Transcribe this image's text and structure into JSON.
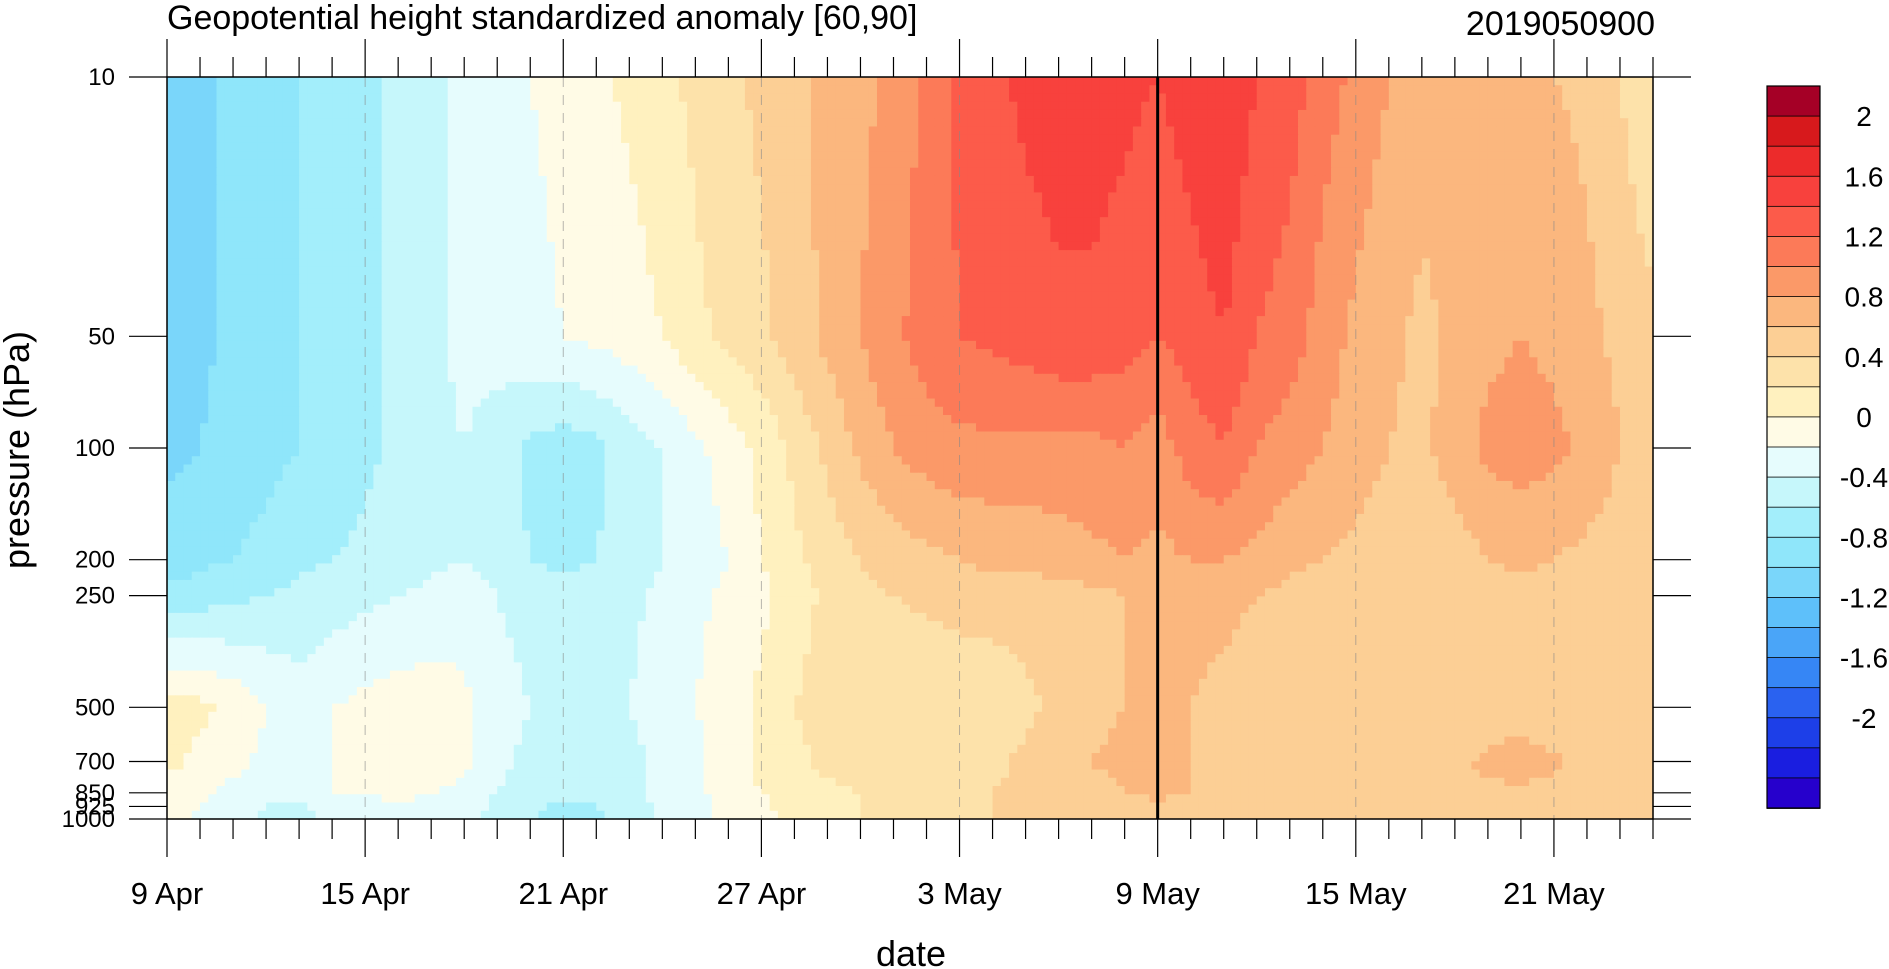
{
  "chart_data": {
    "type": "heatmap",
    "title": "Geopotential height standardized anomaly [60,90]",
    "subtitle_right": "2019050900",
    "xlabel": "date",
    "ylabel": "pressure (hPa)",
    "x_tick_labels": [
      "9 Apr",
      "15 Apr",
      "21 Apr",
      "27 Apr",
      "3 May",
      "9 May",
      "15 May",
      "21 May"
    ],
    "y_tick_labels": [
      "10",
      "50",
      "100",
      "200",
      "250",
      "500",
      "700",
      "850",
      "925",
      "1000"
    ],
    "pressure_levels": [
      10,
      50,
      100,
      200,
      250,
      500,
      700,
      850,
      925,
      1000
    ],
    "y_scale": "log",
    "y_reversed": true,
    "xlim_days": [
      0,
      45
    ],
    "current_date_marker": "9 May",
    "colorbar_labels": [
      "2",
      "1.6",
      "1.2",
      "0.8",
      "0.4",
      "0",
      "-0.4",
      "-0.8",
      "-1.2",
      "-1.6",
      "-2"
    ],
    "colorbar_levels": [
      2.2,
      2.0,
      1.8,
      1.6,
      1.4,
      1.2,
      1.0,
      0.8,
      0.6,
      0.4,
      0.2,
      0.0,
      -0.2,
      -0.4,
      -0.6,
      -0.8,
      -1.0,
      -1.2,
      -1.4,
      -1.6,
      -1.8,
      -2.0,
      -2.2
    ],
    "colorbar_colors": [
      "#a50026",
      "#d7191c",
      "#ec2b2b",
      "#f8413d",
      "#fc5b4a",
      "#fc7a58",
      "#fb9968",
      "#fbb77e",
      "#fccf95",
      "#fde2aa",
      "#fff1bf",
      "#fffbe6",
      "#e6fcfd",
      "#c6f7fb",
      "#a3eefb",
      "#8fe6fa",
      "#7ad6fa",
      "#5ec0fa",
      "#4aa5f8",
      "#3686f5",
      "#2a62f0",
      "#1d3fe8",
      "#1a1ee0",
      "#2600cc"
    ],
    "color_band_map": [
      -1.0,
      -0.8,
      -0.6,
      -0.4,
      -0.2,
      0.0,
      0.2,
      0.4,
      0.6,
      0.8,
      1.0,
      1.2,
      1.4,
      1.6,
      1.8
    ],
    "days": [
      0,
      1,
      2,
      3,
      4,
      5,
      6,
      7,
      8,
      9,
      10,
      11,
      12,
      13,
      14,
      15,
      16,
      17,
      18,
      19,
      20,
      21,
      22,
      23,
      24,
      25,
      26,
      27,
      28,
      29,
      30,
      31,
      32,
      33,
      34,
      35,
      36,
      37,
      38,
      39,
      40,
      41,
      42,
      43,
      44,
      45
    ],
    "values": [
      [
        -1.0,
        -0.9,
        -0.7,
        -0.65,
        -0.6,
        -0.55,
        -0.45,
        -0.35,
        -0.25,
        -0.15,
        -0.1,
        0.0,
        0.05,
        0.15,
        0.25,
        0.35,
        0.45,
        0.55,
        0.65,
        0.75,
        0.85,
        0.95,
        1.05,
        1.25,
        1.45,
        1.55,
        1.65,
        1.7,
        1.7,
        1.65,
        1.6,
        1.7,
        1.8,
        1.6,
        1.5,
        1.3,
        1.15,
        1.0,
        0.9,
        0.85,
        0.85,
        0.85,
        0.8,
        0.75,
        0.6,
        0.4
      ],
      [
        -0.9,
        -0.85,
        -0.75,
        -0.65,
        -0.6,
        -0.55,
        -0.45,
        -0.35,
        -0.25,
        -0.15,
        -0.1,
        -0.05,
        0.0,
        0.05,
        0.1,
        0.2,
        0.35,
        0.45,
        0.55,
        0.7,
        0.85,
        1.0,
        1.15,
        1.3,
        1.4,
        1.45,
        1.5,
        1.55,
        1.55,
        1.5,
        1.4,
        1.5,
        1.6,
        1.4,
        1.3,
        1.1,
        0.95,
        0.85,
        0.75,
        0.85,
        0.95,
        1.0,
        0.95,
        0.85,
        0.75,
        0.65
      ],
      [
        -0.85,
        -0.8,
        -0.7,
        -0.65,
        -0.6,
        -0.55,
        -0.45,
        -0.35,
        -0.25,
        -0.2,
        -0.3,
        -0.45,
        -0.5,
        -0.45,
        -0.3,
        -0.2,
        -0.05,
        0.1,
        0.25,
        0.45,
        0.65,
        0.85,
        1.0,
        1.1,
        1.15,
        1.15,
        1.15,
        1.15,
        1.15,
        1.2,
        1.1,
        1.3,
        1.4,
        1.2,
        1.1,
        1.0,
        0.9,
        0.8,
        0.75,
        0.9,
        1.05,
        1.1,
        1.05,
        0.95,
        0.8,
        0.7
      ],
      [
        -0.7,
        -0.65,
        -0.6,
        -0.55,
        -0.45,
        -0.4,
        -0.35,
        -0.3,
        -0.25,
        -0.2,
        -0.3,
        -0.4,
        -0.45,
        -0.4,
        -0.3,
        -0.2,
        -0.1,
        0.0,
        0.2,
        0.35,
        0.5,
        0.6,
        0.7,
        0.75,
        0.8,
        0.85,
        0.85,
        0.9,
        0.95,
        1.0,
        0.95,
        1.0,
        1.0,
        0.95,
        0.85,
        0.8,
        0.75,
        0.7,
        0.65,
        0.7,
        0.8,
        0.85,
        0.8,
        0.75,
        0.7,
        0.65
      ],
      [
        -0.55,
        -0.5,
        -0.45,
        -0.4,
        -0.35,
        -0.3,
        -0.25,
        -0.2,
        -0.15,
        -0.1,
        -0.2,
        -0.3,
        -0.35,
        -0.3,
        -0.25,
        -0.15,
        -0.05,
        0.05,
        0.15,
        0.3,
        0.45,
        0.55,
        0.6,
        0.65,
        0.7,
        0.7,
        0.7,
        0.7,
        0.75,
        0.8,
        0.8,
        0.85,
        0.85,
        0.8,
        0.75,
        0.65,
        0.6,
        0.6,
        0.6,
        0.65,
        0.7,
        0.75,
        0.7,
        0.7,
        0.65,
        0.6
      ],
      [
        0.3,
        0.25,
        0.15,
        0.0,
        -0.1,
        0.0,
        0.05,
        0.1,
        0.1,
        0.05,
        -0.1,
        -0.2,
        -0.25,
        -0.25,
        -0.2,
        -0.1,
        0.0,
        0.1,
        0.25,
        0.4,
        0.5,
        0.5,
        0.45,
        0.4,
        0.4,
        0.45,
        0.55,
        0.65,
        0.75,
        0.8,
        0.8,
        0.8,
        0.75,
        0.7,
        0.65,
        0.6,
        0.6,
        0.62,
        0.68,
        0.72,
        0.75,
        0.75,
        0.7,
        0.65,
        0.62,
        0.6
      ],
      [
        0.25,
        0.15,
        0.05,
        -0.05,
        0.0,
        0.0,
        0.1,
        0.15,
        0.15,
        0.05,
        -0.15,
        -0.25,
        -0.3,
        -0.3,
        -0.25,
        -0.15,
        -0.05,
        0.1,
        0.25,
        0.35,
        0.45,
        0.5,
        0.5,
        0.45,
        0.45,
        0.55,
        0.65,
        0.75,
        0.8,
        0.85,
        0.85,
        0.8,
        0.75,
        0.7,
        0.68,
        0.65,
        0.65,
        0.7,
        0.75,
        0.78,
        0.82,
        0.85,
        0.82,
        0.75,
        0.7,
        0.65
      ],
      [
        0.15,
        0.05,
        -0.05,
        -0.1,
        -0.05,
        0.0,
        0.0,
        0.05,
        0.0,
        -0.05,
        -0.2,
        -0.3,
        -0.35,
        -0.35,
        -0.25,
        -0.15,
        -0.05,
        0.1,
        0.2,
        0.3,
        0.35,
        0.4,
        0.45,
        0.5,
        0.55,
        0.6,
        0.65,
        0.7,
        0.75,
        0.8,
        0.85,
        0.8,
        0.75,
        0.72,
        0.72,
        0.72,
        0.75,
        0.75,
        0.78,
        0.78,
        0.78,
        0.78,
        0.76,
        0.72,
        0.7,
        0.65
      ],
      [
        0.1,
        0.0,
        -0.1,
        -0.2,
        -0.25,
        -0.1,
        -0.05,
        0.0,
        -0.05,
        -0.1,
        -0.25,
        -0.35,
        -0.45,
        -0.4,
        -0.3,
        -0.15,
        -0.05,
        0.05,
        0.15,
        0.3,
        0.35,
        0.4,
        0.45,
        0.5,
        0.55,
        0.6,
        0.65,
        0.7,
        0.72,
        0.72,
        0.75,
        0.72,
        0.68,
        0.66,
        0.66,
        0.66,
        0.68,
        0.7,
        0.72,
        0.72,
        0.72,
        0.72,
        0.7,
        0.68,
        0.65,
        0.6
      ],
      [
        0.05,
        -0.05,
        -0.15,
        -0.25,
        -0.3,
        -0.15,
        -0.1,
        -0.05,
        -0.1,
        -0.15,
        -0.3,
        -0.4,
        -0.5,
        -0.45,
        -0.3,
        -0.15,
        -0.05,
        0.05,
        0.15,
        0.25,
        0.35,
        0.4,
        0.45,
        0.5,
        0.55,
        0.6,
        0.6,
        0.62,
        0.65,
        0.68,
        0.7,
        0.68,
        0.65,
        0.62,
        0.62,
        0.62,
        0.65,
        0.66,
        0.68,
        0.68,
        0.68,
        0.68,
        0.66,
        0.64,
        0.62,
        0.6
      ]
    ]
  }
}
